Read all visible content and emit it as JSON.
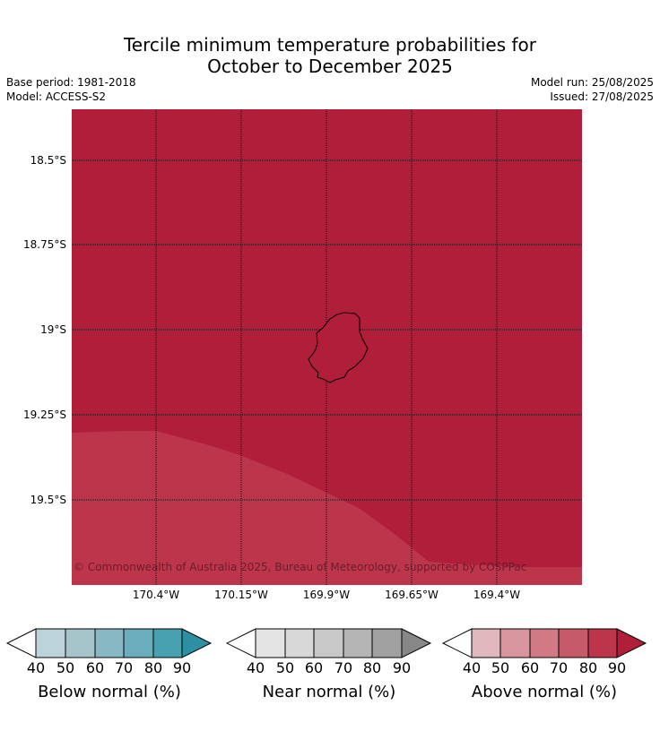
{
  "title_line1": "Tercile minimum temperature probabilities for",
  "title_line2": "October to December 2025",
  "base_period": "Base period: 1981-2018",
  "model": "Model: ACCESS-S2",
  "model_run": "Model run: 25/08/2025",
  "issued": "Issued: 27/08/2025",
  "copyright": "© Commonwealth of Australia 2025, Bureau of Meteorology, supported by COSPPac",
  "map": {
    "lat_labels": [
      "18.5°S",
      "18.75°S",
      "19°S",
      "19.25°S",
      "19.5°S"
    ],
    "lon_labels": [
      "170.4°W",
      "170.15°W",
      "169.9°W",
      "169.65°W",
      "169.4°W"
    ],
    "region_colors": {
      "above_90": "#b01e3a",
      "above_80": "#bd354a"
    },
    "island": "Niue"
  },
  "legends": [
    {
      "title": "Below normal (%)",
      "ticks": [
        "40",
        "50",
        "60",
        "70",
        "80",
        "90"
      ],
      "colors": [
        "#bdd3da",
        "#a5c5cb",
        "#88b8c3",
        "#6aadbc",
        "#48a1b1",
        "#2c8fa2"
      ]
    },
    {
      "title": "Near normal (%)",
      "ticks": [
        "40",
        "50",
        "60",
        "70",
        "80",
        "90"
      ],
      "colors": [
        "#e4e4e4",
        "#d8d8d8",
        "#c8c8c8",
        "#b4b4b4",
        "#a0a0a0",
        "#878787"
      ]
    },
    {
      "title": "Above normal (%)",
      "ticks": [
        "40",
        "50",
        "60",
        "70",
        "80",
        "90"
      ],
      "colors": [
        "#e1b8bd",
        "#d7969e",
        "#cf7a84",
        "#c65a6b",
        "#bd354a",
        "#b01e3a"
      ]
    }
  ]
}
